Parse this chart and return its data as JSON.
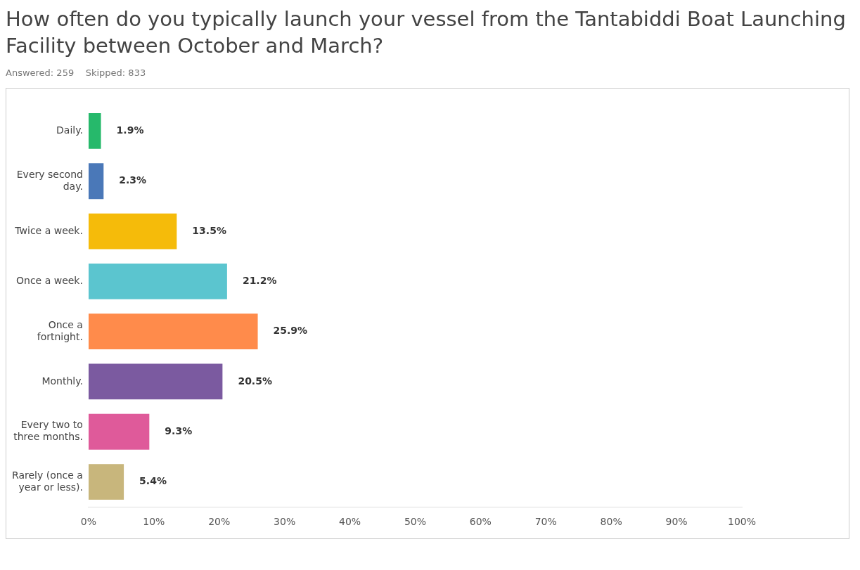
{
  "chart_data": {
    "type": "bar",
    "orientation": "horizontal",
    "title": "How often do you typically launch your vessel from the Tantabiddi Boat Launching Facility between October and March?",
    "subtitle": "Answered: 259    Skipped: 833",
    "categories": [
      [
        "Daily."
      ],
      [
        "Every second",
        "day."
      ],
      [
        "Twice a week."
      ],
      [
        "Once a week."
      ],
      [
        "Once a",
        "fortnight."
      ],
      [
        "Monthly."
      ],
      [
        "Every two to",
        "three months."
      ],
      [
        "Rarely (once a",
        "year or less)."
      ]
    ],
    "values": [
      1.9,
      2.3,
      13.5,
      21.2,
      25.9,
      20.5,
      9.3,
      5.4
    ],
    "colors": [
      "#26b96b",
      "#4a78b8",
      "#f5bb0a",
      "#5bc5cf",
      "#ff8b4b",
      "#7b5aa0",
      "#df5a9a",
      "#c8b67c"
    ],
    "value_labels": [
      "1.9%",
      "2.3%",
      "13.5%",
      "21.2%",
      "25.9%",
      "20.5%",
      "9.3%",
      "5.4%"
    ],
    "xlim": [
      0,
      100
    ],
    "xticks": [
      {
        "value": 0,
        "label": "0%"
      },
      {
        "value": 10,
        "label": "10%"
      },
      {
        "value": 20,
        "label": "20%"
      },
      {
        "value": 30,
        "label": "30%"
      },
      {
        "value": 40,
        "label": "40%"
      },
      {
        "value": 50,
        "label": "50%"
      },
      {
        "value": 60,
        "label": "60%"
      },
      {
        "value": 70,
        "label": "70%"
      },
      {
        "value": 80,
        "label": "80%"
      },
      {
        "value": 90,
        "label": "90%"
      },
      {
        "value": 100,
        "label": "100%"
      }
    ],
    "grid": false,
    "legend": false
  }
}
